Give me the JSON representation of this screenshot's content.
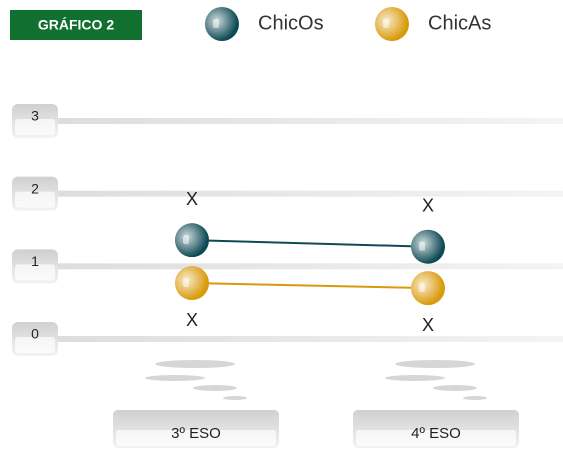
{
  "chart_data": {
    "type": "line",
    "title": "GRÁFICO 2",
    "categories": [
      "3º ESO",
      "4º ESO"
    ],
    "series": [
      {
        "name": "ChicOs",
        "color": "#0e4a55",
        "values": [
          1.36,
          1.27
        ]
      },
      {
        "name": "ChicAs",
        "color": "#d99a0a",
        "values": [
          0.77,
          0.7
        ]
      }
    ],
    "annotations": [
      "X",
      "X",
      "X",
      "X"
    ],
    "ylim": [
      0,
      3
    ],
    "yticks": [
      0,
      1,
      2,
      3
    ],
    "grid": true
  }
}
